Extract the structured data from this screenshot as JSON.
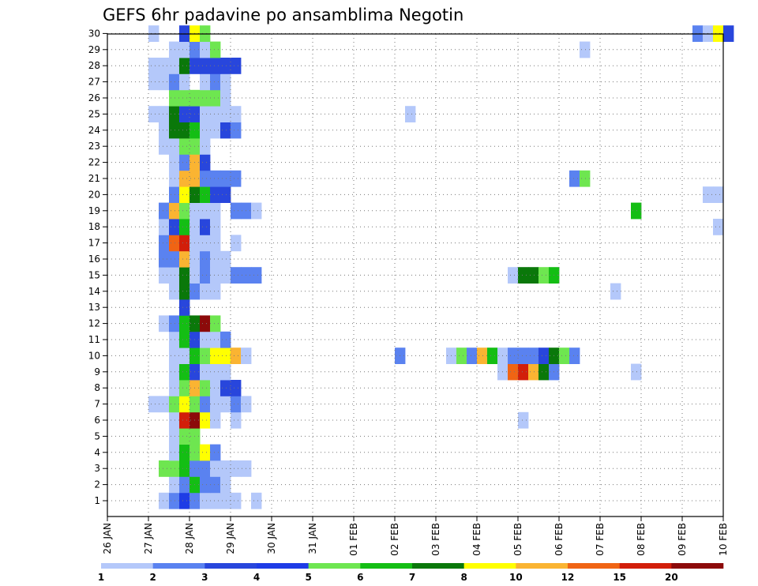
{
  "chart_data": {
    "type": "heatmap",
    "title": "GEFS 6hr padavine po ansamblima Negotin",
    "xlabel": "",
    "ylabel": "",
    "x_tick_labels": [
      "26 JAN",
      "27 JAN",
      "28 JAN",
      "29 JAN",
      "30 JAN",
      "31 JAN",
      "01 FEB",
      "02 FEB",
      "03 FEB",
      "04 FEB",
      "05 FEB",
      "06 FEB",
      "07 FEB",
      "08 FEB",
      "09 FEB",
      "10 FEB"
    ],
    "y_tick_labels": [
      "1",
      "2",
      "3",
      "4",
      "5",
      "6",
      "7",
      "8",
      "9",
      "10",
      "11",
      "12",
      "13",
      "14",
      "15",
      "16",
      "17",
      "18",
      "19",
      "20",
      "21",
      "22",
      "23",
      "24",
      "25",
      "26",
      "27",
      "28",
      "29",
      "30"
    ],
    "xlim": [
      "26 JAN",
      "10 FEB"
    ],
    "ylim": [
      1,
      30
    ],
    "time_step_hours": 6,
    "grid": "dotted",
    "legend": {
      "placement": "bottom",
      "levels": [
        "1",
        "2",
        "3",
        "4",
        "5",
        "6",
        "7",
        "8",
        "10",
        "12",
        "15",
        "20"
      ],
      "colors": [
        "#b4c8fa",
        "#5a82f0",
        "#2846dc",
        "#1e3ce6",
        "#6ee650",
        "#14be14",
        "#0a780a",
        "#ffff00",
        "#fab432",
        "#f06414",
        "#d21e0a",
        "#8c0a0a"
      ]
    },
    "member_rows": [
      {
        "member": 1,
        "cells": [
          [
            5,
            1
          ],
          [
            6,
            2
          ],
          [
            7,
            4
          ],
          [
            8,
            2
          ],
          [
            9,
            1
          ],
          [
            10,
            1
          ],
          [
            11,
            1
          ],
          [
            12,
            1
          ],
          [
            14,
            1
          ]
        ]
      },
      {
        "member": 2,
        "cells": [
          [
            6,
            1
          ],
          [
            7,
            2
          ],
          [
            8,
            6
          ],
          [
            9,
            2
          ],
          [
            10,
            2
          ],
          [
            11,
            1
          ]
        ]
      },
      {
        "member": 3,
        "cells": [
          [
            5,
            5
          ],
          [
            6,
            5
          ],
          [
            7,
            6
          ],
          [
            8,
            2
          ],
          [
            9,
            2
          ],
          [
            10,
            1
          ],
          [
            11,
            1
          ],
          [
            12,
            1
          ],
          [
            13,
            1
          ]
        ]
      },
      {
        "member": 4,
        "cells": [
          [
            6,
            1
          ],
          [
            7,
            6
          ],
          [
            8,
            5
          ],
          [
            9,
            8
          ],
          [
            10,
            2
          ]
        ]
      },
      {
        "member": 5,
        "cells": [
          [
            6,
            1
          ],
          [
            7,
            5
          ],
          [
            8,
            5
          ]
        ]
      },
      {
        "member": 6,
        "cells": [
          [
            6,
            1
          ],
          [
            7,
            15
          ],
          [
            8,
            20
          ],
          [
            9,
            8
          ],
          [
            10,
            1
          ],
          [
            12,
            1
          ],
          [
            40,
            1
          ]
        ]
      },
      {
        "member": 7,
        "cells": [
          [
            4,
            1
          ],
          [
            5,
            1
          ],
          [
            6,
            5
          ],
          [
            7,
            8
          ],
          [
            8,
            5
          ],
          [
            9,
            2
          ],
          [
            10,
            1
          ],
          [
            11,
            1
          ],
          [
            12,
            2
          ],
          [
            13,
            1
          ]
        ]
      },
      {
        "member": 8,
        "cells": [
          [
            6,
            1
          ],
          [
            7,
            5
          ],
          [
            8,
            10
          ],
          [
            9,
            5
          ],
          [
            10,
            1
          ],
          [
            11,
            3
          ],
          [
            12,
            3
          ]
        ]
      },
      {
        "member": 9,
        "cells": [
          [
            6,
            1
          ],
          [
            7,
            6
          ],
          [
            8,
            3
          ],
          [
            9,
            1
          ],
          [
            10,
            1
          ],
          [
            11,
            1
          ],
          [
            38,
            1
          ],
          [
            39,
            12
          ],
          [
            40,
            15
          ],
          [
            41,
            10
          ],
          [
            42,
            7
          ],
          [
            43,
            2
          ],
          [
            51,
            1
          ]
        ]
      },
      {
        "member": 10,
        "cells": [
          [
            6,
            1
          ],
          [
            7,
            1
          ],
          [
            8,
            6
          ],
          [
            9,
            5
          ],
          [
            10,
            8
          ],
          [
            11,
            8
          ],
          [
            12,
            10
          ],
          [
            13,
            1
          ],
          [
            28,
            2
          ],
          [
            33,
            1
          ],
          [
            34,
            5
          ],
          [
            35,
            2
          ],
          [
            36,
            10
          ],
          [
            37,
            6
          ],
          [
            38,
            1
          ],
          [
            39,
            2
          ],
          [
            40,
            2
          ],
          [
            41,
            2
          ],
          [
            42,
            3
          ],
          [
            43,
            7
          ],
          [
            44,
            5
          ],
          [
            45,
            2
          ]
        ]
      },
      {
        "member": 11,
        "cells": [
          [
            6,
            1
          ],
          [
            7,
            6
          ],
          [
            8,
            3
          ],
          [
            9,
            1
          ],
          [
            10,
            1
          ],
          [
            11,
            2
          ]
        ]
      },
      {
        "member": 12,
        "cells": [
          [
            5,
            1
          ],
          [
            6,
            2
          ],
          [
            7,
            6
          ],
          [
            8,
            7
          ],
          [
            9,
            20
          ],
          [
            10,
            5
          ]
        ]
      },
      {
        "member": 13,
        "cells": [
          [
            7,
            3
          ]
        ]
      },
      {
        "member": 14,
        "cells": [
          [
            6,
            1
          ],
          [
            7,
            7
          ],
          [
            8,
            2
          ],
          [
            9,
            1
          ],
          [
            10,
            1
          ],
          [
            49,
            1
          ]
        ]
      },
      {
        "member": 15,
        "cells": [
          [
            5,
            1
          ],
          [
            6,
            1
          ],
          [
            7,
            7
          ],
          [
            8,
            1
          ],
          [
            9,
            2
          ],
          [
            10,
            1
          ],
          [
            11,
            1
          ],
          [
            12,
            2
          ],
          [
            13,
            2
          ],
          [
            14,
            2
          ],
          [
            39,
            1
          ],
          [
            40,
            7
          ],
          [
            41,
            7
          ],
          [
            42,
            5
          ],
          [
            43,
            6
          ]
        ]
      },
      {
        "member": 16,
        "cells": [
          [
            5,
            2
          ],
          [
            6,
            2
          ],
          [
            7,
            10
          ],
          [
            8,
            1
          ],
          [
            9,
            2
          ],
          [
            10,
            1
          ],
          [
            11,
            1
          ]
        ]
      },
      {
        "member": 17,
        "cells": [
          [
            5,
            2
          ],
          [
            6,
            12
          ],
          [
            7,
            15
          ],
          [
            8,
            1
          ],
          [
            9,
            1
          ],
          [
            10,
            1
          ],
          [
            12,
            1
          ]
        ]
      },
      {
        "member": 18,
        "cells": [
          [
            5,
            1
          ],
          [
            6,
            3
          ],
          [
            7,
            6
          ],
          [
            8,
            1
          ],
          [
            9,
            3
          ],
          [
            10,
            1
          ],
          [
            59,
            1
          ]
        ]
      },
      {
        "member": 19,
        "cells": [
          [
            5,
            2
          ],
          [
            6,
            10
          ],
          [
            7,
            5
          ],
          [
            8,
            1
          ],
          [
            9,
            1
          ],
          [
            10,
            1
          ],
          [
            12,
            2
          ],
          [
            13,
            2
          ],
          [
            14,
            1
          ],
          [
            51,
            6
          ]
        ]
      },
      {
        "member": 20,
        "cells": [
          [
            6,
            2
          ],
          [
            7,
            8
          ],
          [
            8,
            7
          ],
          [
            9,
            6
          ],
          [
            10,
            3
          ],
          [
            11,
            3
          ],
          [
            58,
            1
          ],
          [
            59,
            1
          ]
        ]
      },
      {
        "member": 21,
        "cells": [
          [
            6,
            1
          ],
          [
            7,
            10
          ],
          [
            8,
            10
          ],
          [
            9,
            2
          ],
          [
            10,
            2
          ],
          [
            11,
            2
          ],
          [
            12,
            2
          ],
          [
            45,
            2
          ],
          [
            46,
            5
          ]
        ]
      },
      {
        "member": 22,
        "cells": [
          [
            6,
            1
          ],
          [
            7,
            2
          ],
          [
            8,
            10
          ],
          [
            9,
            3
          ]
        ]
      },
      {
        "member": 23,
        "cells": [
          [
            5,
            1
          ],
          [
            6,
            1
          ],
          [
            7,
            5
          ],
          [
            8,
            5
          ],
          [
            9,
            1
          ]
        ]
      },
      {
        "member": 24,
        "cells": [
          [
            5,
            1
          ],
          [
            6,
            7
          ],
          [
            7,
            7
          ],
          [
            8,
            6
          ],
          [
            9,
            1
          ],
          [
            10,
            1
          ],
          [
            11,
            3
          ],
          [
            12,
            2
          ]
        ]
      },
      {
        "member": 25,
        "cells": [
          [
            4,
            1
          ],
          [
            5,
            1
          ],
          [
            6,
            7
          ],
          [
            7,
            3
          ],
          [
            8,
            3
          ],
          [
            9,
            1
          ],
          [
            10,
            1
          ],
          [
            11,
            1
          ],
          [
            12,
            1
          ],
          [
            29,
            1
          ]
        ]
      },
      {
        "member": 26,
        "cells": [
          [
            6,
            5
          ],
          [
            7,
            5
          ],
          [
            8,
            5
          ],
          [
            9,
            5
          ],
          [
            10,
            5
          ],
          [
            11,
            1
          ]
        ]
      },
      {
        "member": 27,
        "cells": [
          [
            4,
            1
          ],
          [
            5,
            1
          ],
          [
            6,
            2
          ],
          [
            7,
            1
          ],
          [
            9,
            1
          ],
          [
            10,
            2
          ],
          [
            11,
            1
          ]
        ]
      },
      {
        "member": 28,
        "cells": [
          [
            4,
            1
          ],
          [
            5,
            1
          ],
          [
            6,
            1
          ],
          [
            7,
            7
          ],
          [
            8,
            3
          ],
          [
            9,
            3
          ],
          [
            10,
            3
          ],
          [
            11,
            3
          ],
          [
            12,
            3
          ]
        ]
      },
      {
        "member": 29,
        "cells": [
          [
            6,
            1
          ],
          [
            7,
            1
          ],
          [
            8,
            2
          ],
          [
            9,
            1
          ],
          [
            10,
            5
          ],
          [
            46,
            1
          ]
        ]
      },
      {
        "member": 30,
        "cells": [
          [
            4,
            1
          ],
          [
            7,
            3
          ],
          [
            8,
            8
          ],
          [
            9,
            5
          ],
          [
            57,
            2
          ],
          [
            58,
            1
          ],
          [
            59,
            8
          ],
          [
            60,
            3
          ]
        ]
      }
    ]
  }
}
